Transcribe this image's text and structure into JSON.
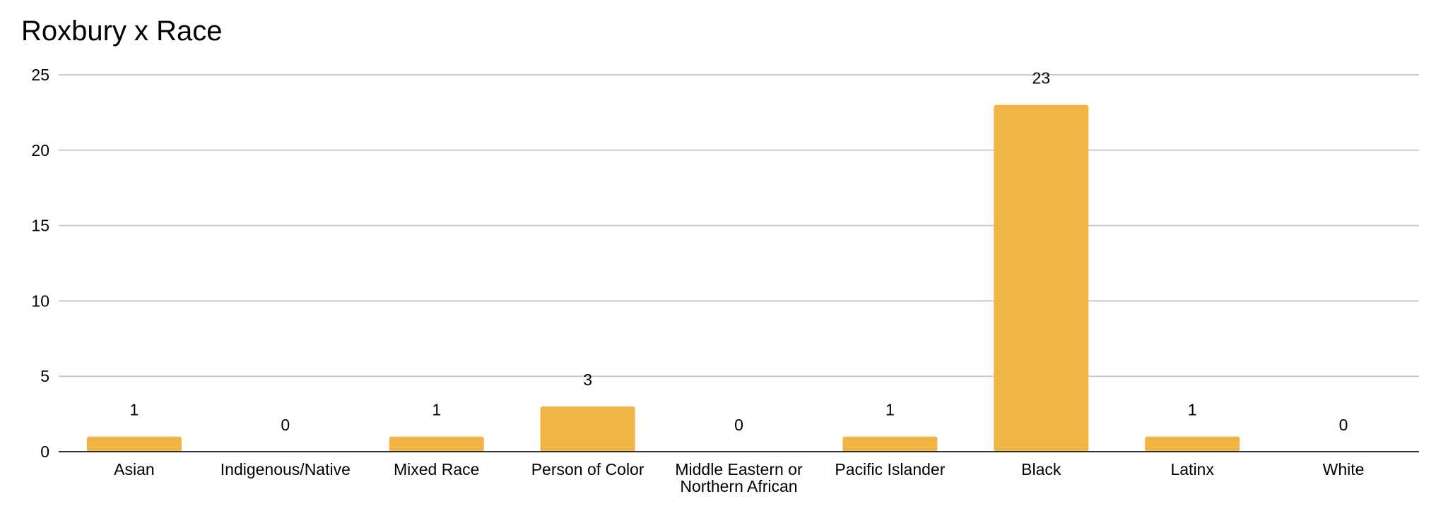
{
  "chart_data": {
    "type": "bar",
    "title": "Roxbury x Race",
    "xlabel": "",
    "ylabel": "",
    "categories": [
      [
        "Asian"
      ],
      [
        "Indigenous/Native"
      ],
      [
        "Mixed Race"
      ],
      [
        "Person of Color"
      ],
      [
        "Middle Eastern or",
        "Northern African"
      ],
      [
        "Pacific Islander"
      ],
      [
        "Black"
      ],
      [
        "Latinx"
      ],
      [
        "White"
      ]
    ],
    "values": [
      1,
      0,
      1,
      3,
      0,
      1,
      23,
      1,
      0
    ],
    "ylim": [
      0,
      25
    ],
    "yticks": [
      0,
      5,
      10,
      15,
      20,
      25
    ],
    "grid": true,
    "legend": "none",
    "bar_color": "#F0B546",
    "show_data_labels": true
  }
}
